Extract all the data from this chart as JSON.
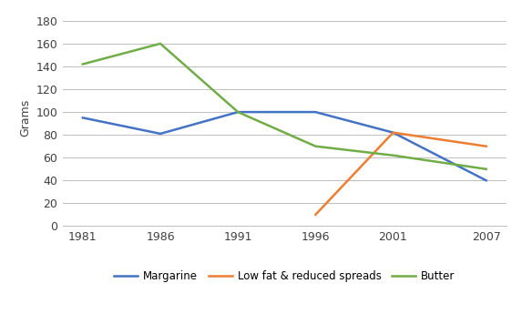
{
  "years": [
    1981,
    1986,
    1991,
    1996,
    2001,
    2007
  ],
  "margarine": [
    95,
    81,
    100,
    100,
    82,
    40
  ],
  "low_fat": [
    null,
    null,
    null,
    10,
    82,
    70
  ],
  "butter": [
    142,
    160,
    100,
    70,
    62,
    50
  ],
  "margarine_color": "#4472c4",
  "low_fat_color": "#ed7d31",
  "butter_color": "#70ad47",
  "ylabel": "Grams",
  "ylim_min": 0,
  "ylim_max": 190,
  "yticks": [
    0,
    20,
    40,
    60,
    80,
    100,
    120,
    140,
    160,
    180
  ],
  "xticks": [
    1981,
    1986,
    1991,
    1996,
    2001,
    2007
  ],
  "legend_labels": [
    "Margarine",
    "Low fat & reduced spreads",
    "Butter"
  ],
  "background_color": "#ffffff",
  "grid_color": "#bfbfbf"
}
